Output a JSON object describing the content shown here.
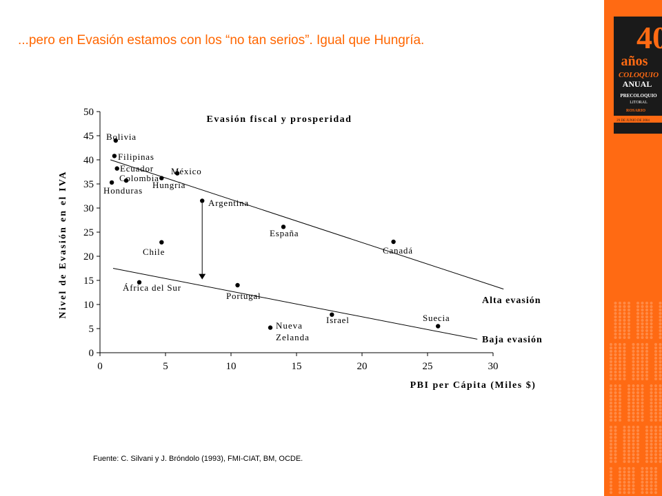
{
  "slide": {
    "title": "...pero en Evasión estamos con los “no tan serios”. Igual que Hungría.",
    "source": "Fuente: C. Silvani y J. Bróndolo (1993), FMI-CIAT, BM, OCDE."
  },
  "logo": {
    "number": "40",
    "anos": "años",
    "coloquio": "COLOQUIO",
    "anual": "ANUAL",
    "precoloquio": "PRECOLOQUIO",
    "litoral": "LITORAL",
    "rosario": "ROSARIO",
    "fecha": "29 DE JUNIO DE 2004"
  },
  "colors": {
    "accent": "#ff6600",
    "band": "#ff6a13",
    "ink": "#000000"
  },
  "chart_data": {
    "type": "scatter",
    "title": "Evasión fiscal y prosperidad",
    "xlabel": "PBI per Cápita (Miles $)",
    "ylabel": "Nivel de Evasión en el IVA",
    "xlim": [
      0,
      30
    ],
    "ylim": [
      0,
      50
    ],
    "xticks": [
      0,
      5,
      10,
      15,
      20,
      25,
      30
    ],
    "yticks": [
      0,
      5,
      10,
      15,
      20,
      25,
      30,
      35,
      40,
      45,
      50
    ],
    "grid": false,
    "points": [
      {
        "label": "Bolivia",
        "x": 1.2,
        "y": 44
      },
      {
        "label": "Filipinas",
        "x": 1.1,
        "y": 40.8
      },
      {
        "label": "Ecuador",
        "x": 1.3,
        "y": 38.2
      },
      {
        "label": "Colombia",
        "x": 2.0,
        "y": 35.7
      },
      {
        "label": "Honduras",
        "x": 0.9,
        "y": 35.3
      },
      {
        "label": "México",
        "x": 5.9,
        "y": 37.2
      },
      {
        "label": "Hungría",
        "x": 4.7,
        "y": 36.2
      },
      {
        "label": "Argentina",
        "x": 7.8,
        "y": 31.5
      },
      {
        "label": "España",
        "x": 14.0,
        "y": 26.1
      },
      {
        "label": "Canadá",
        "x": 22.4,
        "y": 23.0
      },
      {
        "label": "Chile",
        "x": 4.7,
        "y": 22.9
      },
      {
        "label": "África del Sur",
        "x": 3.0,
        "y": 14.6
      },
      {
        "label": "Portugal",
        "x": 10.5,
        "y": 14.0
      },
      {
        "label": "Nueva Zelanda",
        "x": 13.0,
        "y": 5.2
      },
      {
        "label": "Israel",
        "x": 17.7,
        "y": 7.9
      },
      {
        "label": "Suecia",
        "x": 25.8,
        "y": 5.5
      }
    ],
    "lines": [
      {
        "name": "Alta evasión",
        "from": [
          0.8,
          40.0
        ],
        "to": [
          30.8,
          13.2
        ]
      },
      {
        "name": "Baja evasión",
        "from": [
          1.0,
          17.5
        ],
        "to": [
          28.8,
          2.8
        ]
      }
    ],
    "arrow": {
      "from": [
        7.8,
        31.0
      ],
      "to": [
        7.8,
        15.2
      ]
    }
  }
}
